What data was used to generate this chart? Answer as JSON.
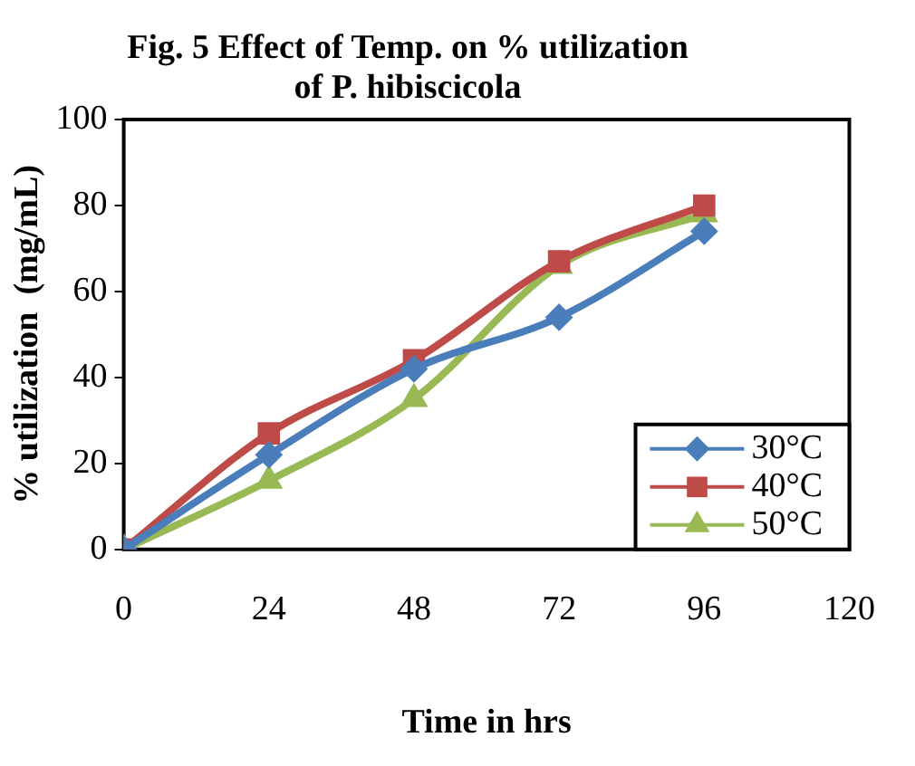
{
  "chart_data": {
    "type": "line",
    "title": "Fig. 5 Effect of Temp. on % utilization of P. hibiscicola",
    "xlabel": "Time in hrs",
    "ylabel": "% utilization  (mg/mL)",
    "x": [
      0,
      24,
      48,
      72,
      96
    ],
    "xlim": [
      0,
      120
    ],
    "xticks": [
      0,
      24,
      48,
      72,
      96,
      120
    ],
    "ylim": [
      0,
      100
    ],
    "yticks": [
      0,
      20,
      40,
      60,
      80,
      100
    ],
    "grid": false,
    "legend": "bottom right",
    "series": [
      {
        "name": "30°C",
        "color": "#4a7ebb",
        "marker": "diamond",
        "values": [
          0,
          22,
          42,
          54,
          74
        ]
      },
      {
        "name": "40°C",
        "color": "#be4b48",
        "marker": "square",
        "values": [
          0,
          27,
          44,
          67,
          80
        ]
      },
      {
        "name": "50°C",
        "color": "#98b954",
        "marker": "triangle",
        "values": [
          0,
          16,
          35,
          66,
          78
        ]
      }
    ]
  }
}
